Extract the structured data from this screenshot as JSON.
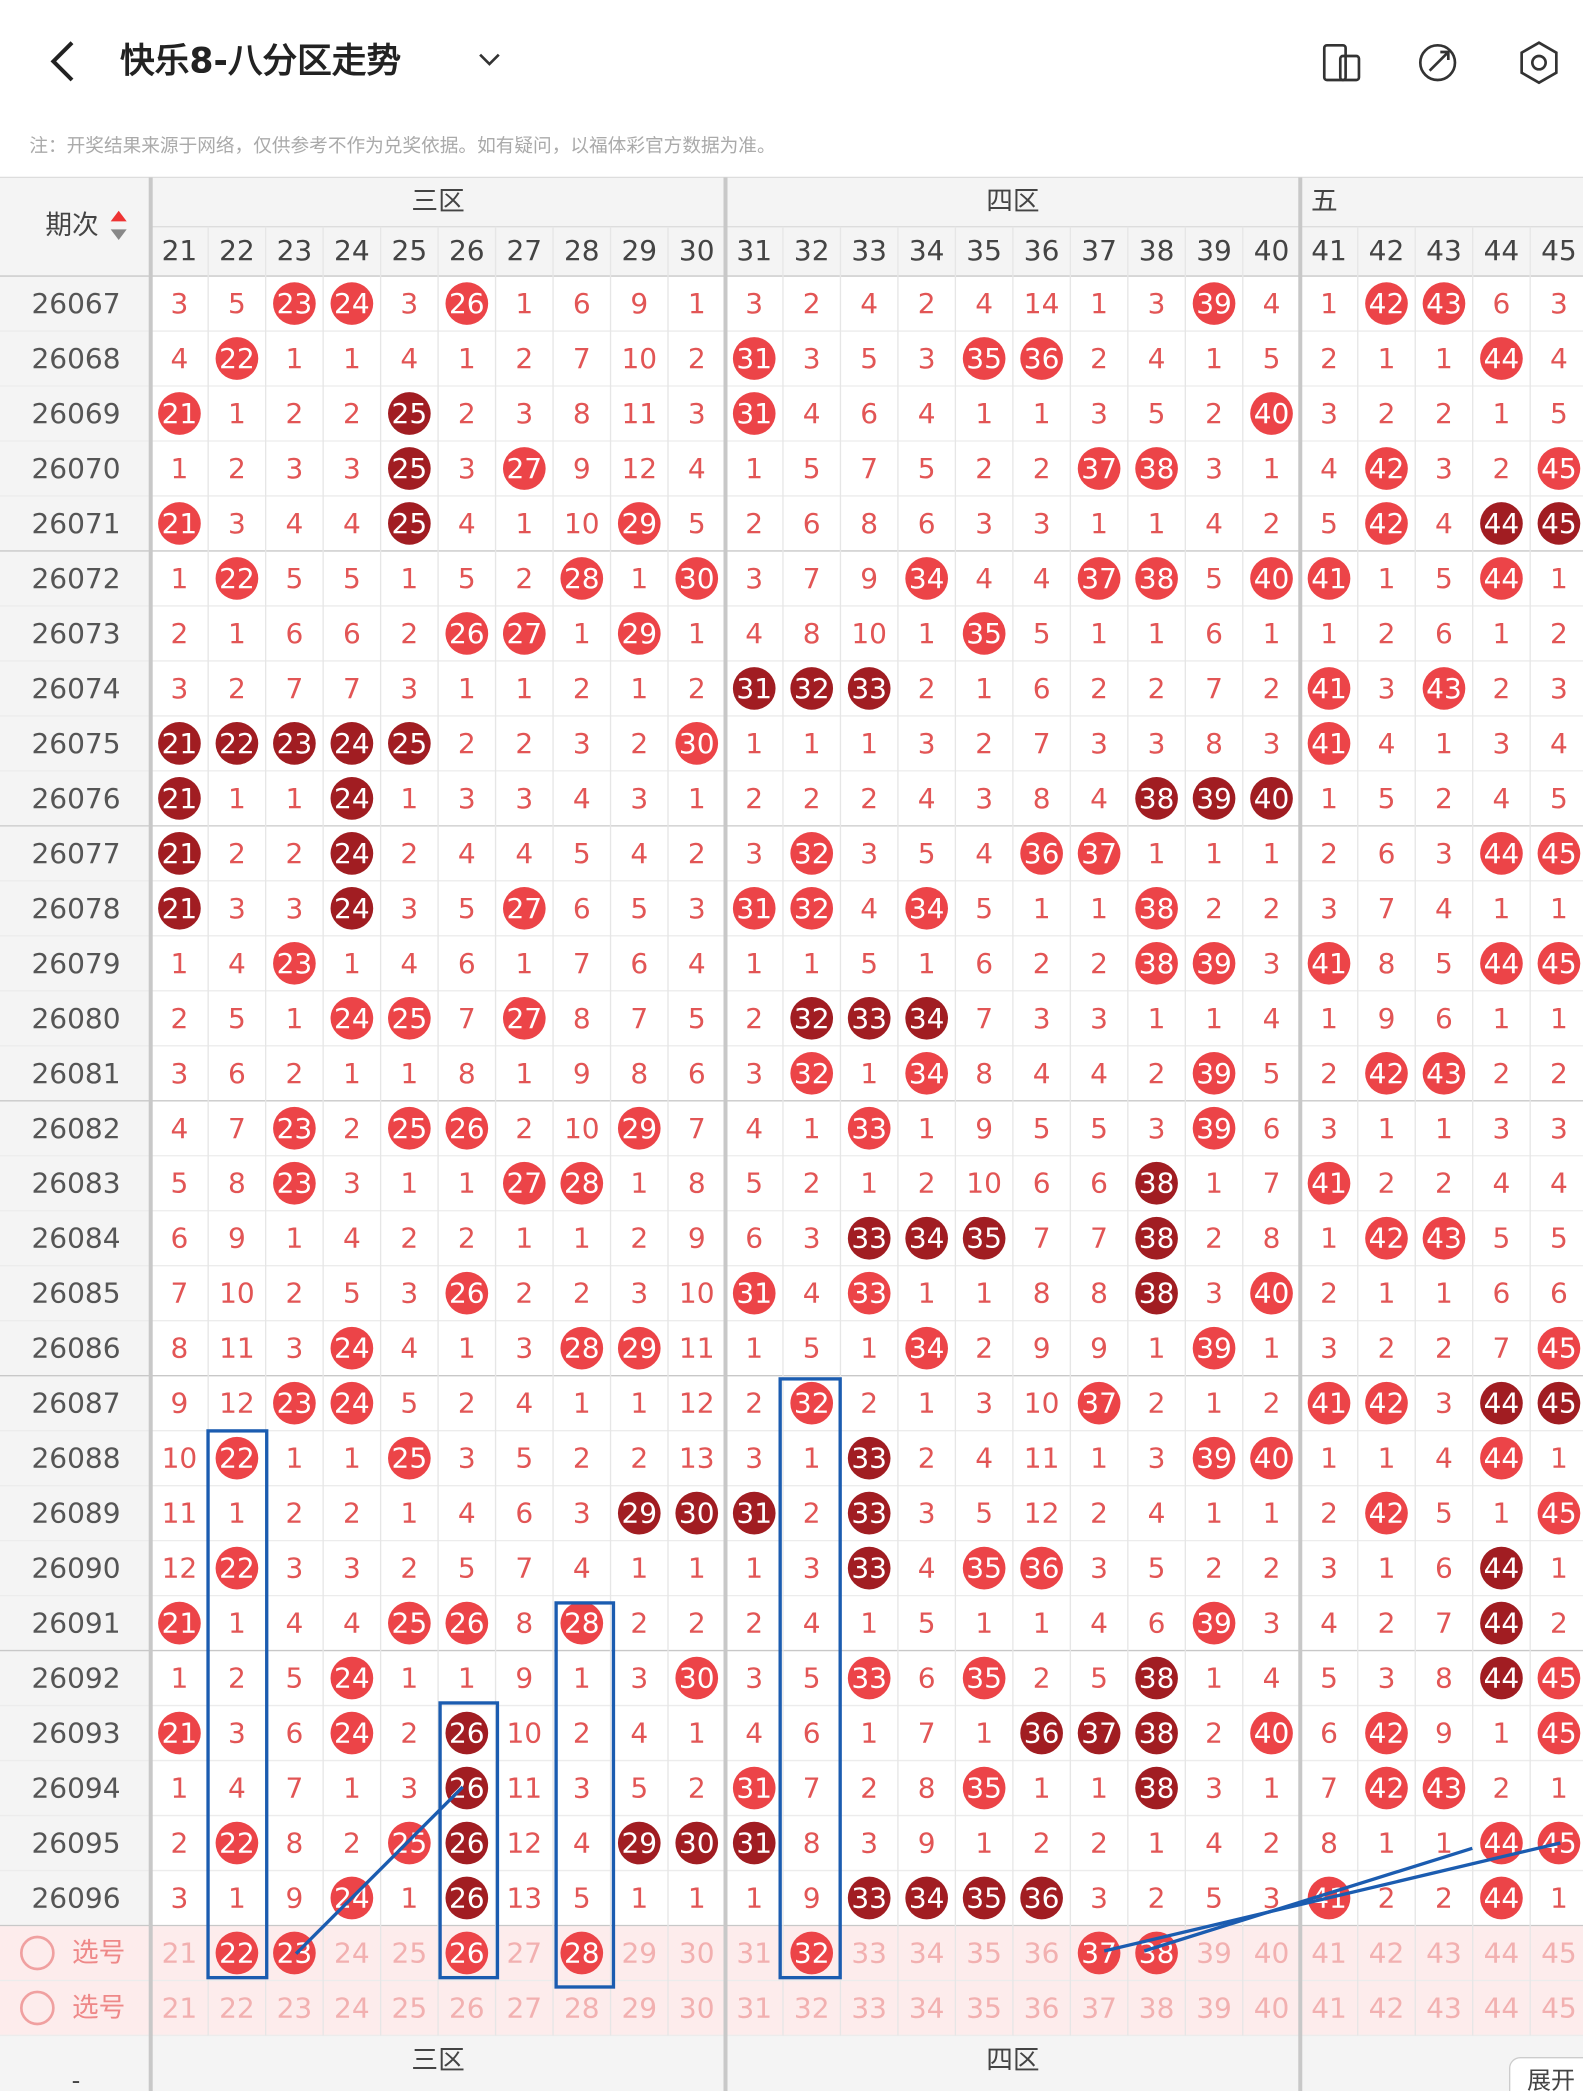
{
  "header": {
    "title": "快乐8-八分区走势",
    "note": "注：开奖结果来源于网络，仅供参考不作为兑奖依据。如有疑问，以福体彩官方数据为准。"
  },
  "table": {
    "period_header": "期次",
    "zones": [
      "三区",
      "四区",
      "五"
    ],
    "columns": [
      21,
      22,
      23,
      24,
      25,
      26,
      27,
      28,
      29,
      30,
      31,
      32,
      33,
      34,
      35,
      36,
      37,
      38,
      39,
      40,
      41,
      42,
      43,
      44,
      45
    ],
    "rows": [
      {
        "period": 26067,
        "cells": [
          3,
          5,
          23,
          24,
          3,
          26,
          1,
          6,
          9,
          1,
          3,
          2,
          4,
          2,
          4,
          14,
          1,
          3,
          39,
          4,
          1,
          42,
          43,
          6,
          3
        ],
        "dark": []
      },
      {
        "period": 26068,
        "cells": [
          4,
          22,
          1,
          1,
          4,
          1,
          2,
          7,
          10,
          2,
          31,
          3,
          5,
          3,
          35,
          36,
          2,
          4,
          1,
          5,
          2,
          1,
          1,
          44,
          4
        ],
        "dark": []
      },
      {
        "period": 26069,
        "cells": [
          21,
          1,
          2,
          2,
          25,
          2,
          3,
          8,
          11,
          3,
          31,
          4,
          6,
          4,
          1,
          1,
          3,
          5,
          2,
          40,
          3,
          2,
          2,
          1,
          5
        ],
        "dark": [
          25
        ]
      },
      {
        "period": 26070,
        "cells": [
          1,
          2,
          3,
          3,
          25,
          3,
          27,
          9,
          12,
          4,
          1,
          5,
          7,
          5,
          2,
          2,
          37,
          38,
          3,
          1,
          4,
          42,
          3,
          2,
          45
        ],
        "dark": [
          25
        ]
      },
      {
        "period": 26071,
        "cells": [
          21,
          3,
          4,
          4,
          25,
          4,
          1,
          10,
          29,
          5,
          2,
          6,
          8,
          6,
          3,
          3,
          1,
          1,
          4,
          2,
          5,
          42,
          4,
          44,
          45
        ],
        "dark": [
          25,
          44,
          45
        ]
      },
      {
        "period": 26072,
        "cells": [
          1,
          22,
          5,
          5,
          1,
          5,
          2,
          28,
          1,
          30,
          3,
          7,
          9,
          34,
          4,
          4,
          37,
          38,
          5,
          40,
          41,
          1,
          5,
          44,
          1
        ],
        "dark": []
      },
      {
        "period": 26073,
        "cells": [
          2,
          1,
          6,
          6,
          2,
          26,
          27,
          1,
          29,
          1,
          4,
          8,
          10,
          1,
          35,
          5,
          1,
          1,
          6,
          1,
          1,
          2,
          6,
          1,
          2
        ],
        "dark": []
      },
      {
        "period": 26074,
        "cells": [
          3,
          2,
          7,
          7,
          3,
          1,
          1,
          2,
          1,
          2,
          31,
          32,
          33,
          2,
          1,
          6,
          2,
          2,
          7,
          2,
          41,
          3,
          43,
          2,
          3
        ],
        "dark": [
          31,
          32,
          33
        ]
      },
      {
        "period": 26075,
        "cells": [
          21,
          22,
          23,
          24,
          25,
          2,
          2,
          3,
          2,
          30,
          1,
          1,
          1,
          3,
          2,
          7,
          3,
          3,
          8,
          3,
          41,
          4,
          1,
          3,
          4
        ],
        "dark": [
          21,
          22,
          23,
          24,
          25
        ]
      },
      {
        "period": 26076,
        "cells": [
          21,
          1,
          1,
          24,
          1,
          3,
          3,
          4,
          3,
          1,
          2,
          2,
          2,
          4,
          3,
          8,
          4,
          38,
          39,
          40,
          1,
          5,
          2,
          4,
          5
        ],
        "dark": [
          21,
          24,
          38,
          39,
          40
        ]
      },
      {
        "period": 26077,
        "cells": [
          21,
          2,
          2,
          24,
          2,
          4,
          4,
          5,
          4,
          2,
          3,
          32,
          3,
          5,
          4,
          36,
          37,
          1,
          1,
          1,
          2,
          6,
          3,
          44,
          45
        ],
        "dark": [
          21,
          24
        ]
      },
      {
        "period": 26078,
        "cells": [
          21,
          3,
          3,
          24,
          3,
          5,
          27,
          6,
          5,
          3,
          31,
          32,
          4,
          34,
          5,
          1,
          1,
          38,
          2,
          2,
          3,
          7,
          4,
          1,
          1
        ],
        "dark": [
          21,
          24
        ]
      },
      {
        "period": 26079,
        "cells": [
          1,
          4,
          23,
          1,
          4,
          6,
          1,
          7,
          6,
          4,
          1,
          1,
          5,
          1,
          6,
          2,
          2,
          38,
          39,
          3,
          41,
          8,
          5,
          44,
          45
        ],
        "dark": []
      },
      {
        "period": 26080,
        "cells": [
          2,
          5,
          1,
          24,
          25,
          7,
          27,
          8,
          7,
          5,
          2,
          32,
          33,
          34,
          7,
          3,
          3,
          1,
          1,
          4,
          1,
          9,
          6,
          1,
          1
        ],
        "dark": [
          32,
          33,
          34
        ]
      },
      {
        "period": 26081,
        "cells": [
          3,
          6,
          2,
          1,
          1,
          8,
          1,
          9,
          8,
          6,
          3,
          32,
          1,
          34,
          8,
          4,
          4,
          2,
          39,
          5,
          2,
          42,
          43,
          2,
          2
        ],
        "dark": []
      },
      {
        "period": 26082,
        "cells": [
          4,
          7,
          23,
          2,
          25,
          26,
          2,
          10,
          29,
          7,
          4,
          1,
          33,
          1,
          9,
          5,
          5,
          3,
          39,
          6,
          3,
          1,
          1,
          3,
          3
        ],
        "dark": []
      },
      {
        "period": 26083,
        "cells": [
          5,
          8,
          23,
          3,
          1,
          1,
          27,
          28,
          1,
          8,
          5,
          2,
          1,
          2,
          10,
          6,
          6,
          38,
          1,
          7,
          41,
          2,
          2,
          4,
          4
        ],
        "dark": [
          38
        ]
      },
      {
        "period": 26084,
        "cells": [
          6,
          9,
          1,
          4,
          2,
          2,
          1,
          1,
          2,
          9,
          6,
          3,
          33,
          34,
          35,
          7,
          7,
          38,
          2,
          8,
          1,
          42,
          43,
          5,
          5
        ],
        "dark": [
          33,
          34,
          35,
          38
        ]
      },
      {
        "period": 26085,
        "cells": [
          7,
          10,
          2,
          5,
          3,
          26,
          2,
          2,
          3,
          10,
          31,
          4,
          33,
          1,
          1,
          8,
          8,
          38,
          3,
          40,
          2,
          1,
          1,
          6,
          6
        ],
        "dark": [
          38
        ]
      },
      {
        "period": 26086,
        "cells": [
          8,
          11,
          3,
          24,
          4,
          1,
          3,
          28,
          29,
          11,
          1,
          5,
          1,
          34,
          2,
          9,
          9,
          1,
          39,
          1,
          3,
          2,
          2,
          7,
          45
        ],
        "dark": []
      },
      {
        "period": 26087,
        "cells": [
          9,
          12,
          23,
          24,
          5,
          2,
          4,
          1,
          1,
          12,
          2,
          32,
          2,
          1,
          3,
          10,
          37,
          2,
          1,
          2,
          41,
          42,
          3,
          44,
          45
        ],
        "dark": [
          44,
          45
        ]
      },
      {
        "period": 26088,
        "cells": [
          10,
          22,
          1,
          1,
          25,
          3,
          5,
          2,
          2,
          13,
          3,
          1,
          33,
          2,
          4,
          11,
          1,
          3,
          39,
          40,
          1,
          1,
          4,
          44,
          1
        ],
        "dark": [
          33
        ]
      },
      {
        "period": 26089,
        "cells": [
          11,
          1,
          2,
          2,
          1,
          4,
          6,
          3,
          29,
          30,
          31,
          2,
          33,
          3,
          5,
          12,
          2,
          4,
          1,
          1,
          2,
          42,
          5,
          1,
          45
        ],
        "dark": [
          29,
          30,
          31,
          33
        ]
      },
      {
        "period": 26090,
        "cells": [
          12,
          22,
          3,
          3,
          2,
          5,
          7,
          4,
          1,
          1,
          1,
          3,
          33,
          4,
          35,
          36,
          3,
          5,
          2,
          2,
          3,
          1,
          6,
          44,
          1
        ],
        "dark": [
          33,
          44
        ]
      },
      {
        "period": 26091,
        "cells": [
          21,
          1,
          4,
          4,
          25,
          26,
          8,
          28,
          2,
          2,
          2,
          4,
          1,
          5,
          1,
          1,
          4,
          6,
          39,
          3,
          4,
          2,
          7,
          44,
          2
        ],
        "dark": [
          44
        ]
      },
      {
        "period": 26092,
        "cells": [
          1,
          2,
          5,
          24,
          1,
          1,
          9,
          1,
          3,
          30,
          3,
          5,
          33,
          6,
          35,
          2,
          5,
          38,
          1,
          4,
          5,
          3,
          8,
          44,
          45
        ],
        "dark": [
          38,
          44
        ]
      },
      {
        "period": 26093,
        "cells": [
          21,
          3,
          6,
          24,
          2,
          26,
          10,
          2,
          4,
          1,
          4,
          6,
          1,
          7,
          1,
          36,
          37,
          38,
          2,
          40,
          6,
          42,
          9,
          1,
          45
        ],
        "dark": [
          26,
          36,
          37,
          38
        ]
      },
      {
        "period": 26094,
        "cells": [
          1,
          4,
          7,
          1,
          3,
          26,
          11,
          3,
          5,
          2,
          31,
          7,
          2,
          8,
          35,
          1,
          1,
          38,
          3,
          1,
          7,
          42,
          43,
          2,
          1
        ],
        "dark": [
          26,
          38
        ]
      },
      {
        "period": 26095,
        "cells": [
          2,
          22,
          8,
          2,
          25,
          26,
          12,
          4,
          29,
          30,
          31,
          8,
          3,
          9,
          1,
          2,
          2,
          1,
          4,
          2,
          8,
          1,
          1,
          44,
          45
        ],
        "dark": [
          26,
          29,
          30,
          31
        ]
      },
      {
        "period": 26096,
        "cells": [
          3,
          1,
          9,
          24,
          1,
          26,
          13,
          5,
          1,
          1,
          1,
          9,
          33,
          34,
          35,
          36,
          3,
          2,
          5,
          3,
          41,
          2,
          2,
          44,
          1
        ],
        "dark": [
          26,
          33,
          34,
          35,
          36
        ]
      }
    ],
    "select_rows": [
      {
        "label": "选号",
        "numbers": [
          21,
          22,
          23,
          24,
          25,
          26,
          27,
          28,
          29,
          30,
          31,
          32,
          33,
          34,
          35,
          36,
          37,
          38,
          39,
          40,
          41,
          42,
          43,
          44,
          45
        ],
        "picked": [
          22,
          23,
          26,
          28,
          32,
          37,
          38
        ]
      },
      {
        "label": "选号",
        "numbers": [
          21,
          22,
          23,
          24,
          25,
          26,
          27,
          28,
          29,
          30,
          31,
          32,
          33,
          34,
          35,
          36,
          37,
          38,
          39,
          40,
          41,
          42,
          43,
          44,
          45
        ],
        "picked": []
      }
    ],
    "footer_zones": [
      "三区",
      "四区"
    ],
    "footer_left": "-",
    "expand": "展开"
  }
}
